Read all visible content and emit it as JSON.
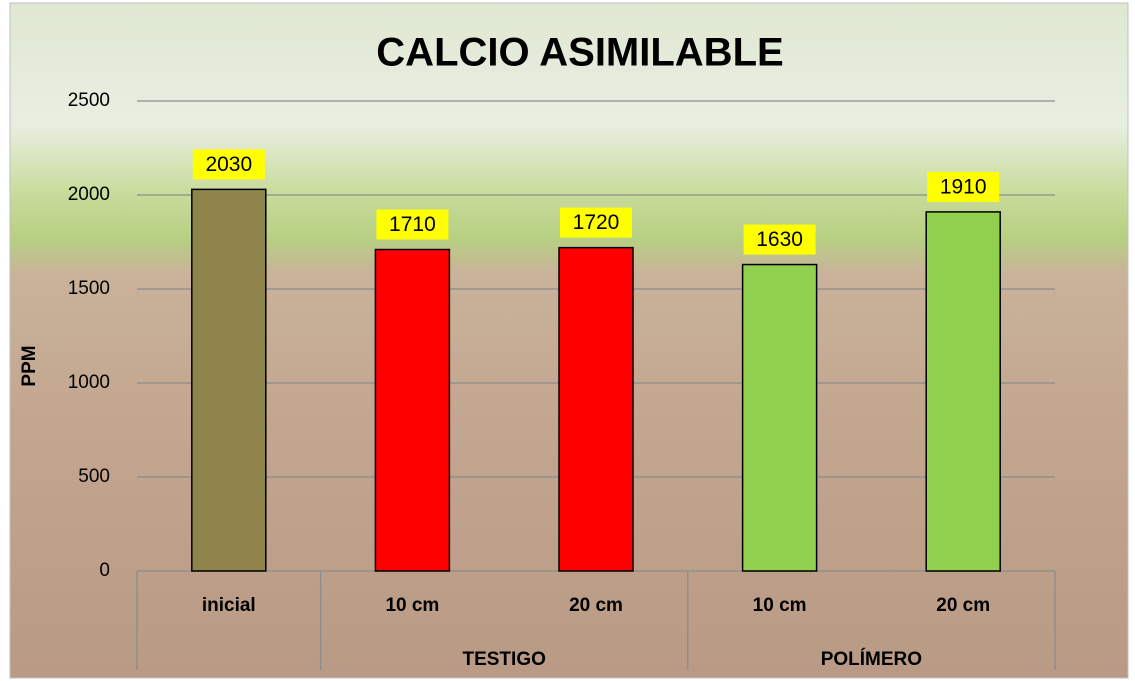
{
  "chart_data": {
    "type": "bar",
    "title": "CALCIO ASIMILABLE",
    "y_label": "PPM",
    "categories": [
      "inicial",
      "10 cm",
      "20 cm",
      "10 cm",
      "20 cm"
    ],
    "groups": [
      null,
      "TESTIGO",
      "TESTIGO",
      "POLÍMERO",
      "POLÍMERO"
    ],
    "values": [
      2030,
      1710,
      1720,
      1630,
      1910
    ],
    "colors": [
      "#8e844c",
      "#ff0000",
      "#ff0000",
      "#92d050",
      "#92d050"
    ],
    "label_background": "#ffff00",
    "ylim": [
      0,
      2500
    ],
    "yticks": [
      0,
      500,
      1000,
      1500,
      2000,
      2500
    ],
    "grid": true
  }
}
